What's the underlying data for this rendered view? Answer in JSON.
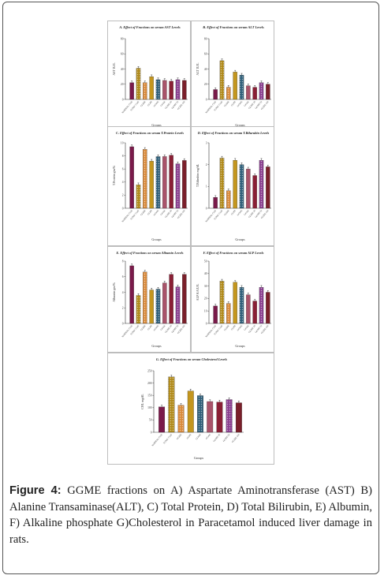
{
  "figure": {
    "caption_label": "Figure 4:",
    "caption_text": " GGME fractions on A) Aspartate Aminotransferase (AST) B) Alanine Transaminase(ALT), C) Total Protein, D) Total Bilirubin, E) Albumin, F) Alkaline phosphate G)Cholesterol in Paracetamol induced liver damage in rats."
  },
  "colors": {
    "normal": "#7a1a4a",
    "toxic": "#b08a1a",
    "orange": "#d98a3a",
    "gold": "#c4961e",
    "teal": "#2f5f7a",
    "mauve": "#a9536a",
    "crimson": "#8a1f35",
    "purple": "#8a3f8f",
    "maroon": "#7a1f2a"
  },
  "chart_data": [
    {
      "id": "A",
      "type": "bar",
      "title": "A. Effect of Fractions on serum AST Levels",
      "xlabel": "Groups",
      "ylabel": "AST IU/L",
      "ylim": [
        0,
        80
      ],
      "yticks": [
        "0",
        "20",
        "40",
        "60",
        "80"
      ],
      "categories": [
        "NORMAL CON",
        "TOXIC CON",
        "GGME",
        "GGPE",
        "GGWE",
        "GGAE",
        "GGME 25",
        "GGME 50",
        "GGME 100"
      ],
      "values": [
        22,
        41,
        22,
        30,
        26,
        25,
        24,
        26,
        25
      ]
    },
    {
      "id": "B",
      "type": "bar",
      "title": "B. Effect of Fractions on serum ALT Levels",
      "xlabel": "Groups",
      "ylabel": "ALT IU/L",
      "ylim": [
        0,
        80
      ],
      "yticks": [
        "0",
        "20",
        "40",
        "60",
        "80"
      ],
      "categories": [
        "NORMAL CON",
        "TOXIC CON",
        "GGME",
        "GGPE",
        "GGWE",
        "GGAE",
        "GGME 25",
        "GGME 50",
        "GGME 100"
      ],
      "values": [
        13,
        51,
        16,
        36,
        32,
        18,
        16,
        22,
        20
      ]
    },
    {
      "id": "C",
      "type": "bar",
      "title": "C. Effect of Fractions on serum T.Protein Levels",
      "xlabel": "Groups",
      "ylabel": "T.Protein gm/%",
      "ylim": [
        0,
        10
      ],
      "yticks": [
        "0",
        "2",
        "4",
        "6",
        "8",
        "10"
      ],
      "categories": [
        "NORMAL CON",
        "TOXIC CON",
        "GGME",
        "GGPE",
        "GGWE",
        "GGAE",
        "GGME 25",
        "GGME 50",
        "GGME 100"
      ],
      "values": [
        9.4,
        3.6,
        9.0,
        7.2,
        7.9,
        7.9,
        8.1,
        6.8,
        7.3
      ]
    },
    {
      "id": "D",
      "type": "bar",
      "title": "D. Effect of Fractions on serum T.Bilurubin Levels",
      "xlabel": "Groups",
      "ylabel": "T.Bilirubin mg/dL",
      "ylim": [
        0,
        3
      ],
      "yticks": [
        "0",
        "1",
        "2",
        "3"
      ],
      "categories": [
        "NORMAL CON",
        "TOXIC CON",
        "GGME",
        "GGPE",
        "GGWE",
        "GGAE",
        "GGME 25",
        "GGME 50",
        "GGME 100"
      ],
      "values": [
        0.5,
        2.3,
        0.8,
        2.2,
        2.0,
        1.8,
        1.5,
        2.2,
        1.9
      ]
    },
    {
      "id": "E",
      "type": "bar",
      "title": "E. Effect of Fractions on serum Albumin Levels",
      "xlabel": "Groups",
      "ylabel": "Albumin gm/%",
      "ylim": [
        0,
        8
      ],
      "yticks": [
        "0",
        "2",
        "4",
        "6",
        "8"
      ],
      "categories": [
        "NORMAL CON",
        "TOXIC CON",
        "GGME",
        "GGPE",
        "GGWE",
        "GGAE",
        "GGME 25",
        "GGME 50",
        "GGME 100"
      ],
      "values": [
        7.4,
        3.6,
        6.6,
        4.3,
        4.4,
        5.2,
        6.3,
        4.7,
        6.3
      ]
    },
    {
      "id": "F",
      "type": "bar",
      "title": "F. Effect of Fractions on serum ALP Levels",
      "xlabel": "Groups",
      "ylabel": "ALP KA/U/L",
      "ylim": [
        0,
        50
      ],
      "yticks": [
        "0",
        "10",
        "20",
        "30",
        "40",
        "50"
      ],
      "categories": [
        "NORMAL CON",
        "TOXIC CON",
        "GGME",
        "GGPE",
        "GGWE",
        "GGAE",
        "GGME 25",
        "GGME 50",
        "GGME 100"
      ],
      "values": [
        14,
        34,
        16,
        33,
        29,
        23,
        18,
        29,
        25
      ]
    },
    {
      "id": "G",
      "type": "bar",
      "title": "G. Effect of Fractions on serum Cholesterol Levels",
      "xlabel": "Groups",
      "ylabel": "CHL mg/dL",
      "ylim": [
        0,
        250
      ],
      "yticks": [
        "0",
        "50",
        "100",
        "150",
        "200",
        "250"
      ],
      "categories": [
        "NORMAL CON",
        "TOXIC CON",
        "GGME",
        "GGPE",
        "GGWE",
        "GGAE",
        "GGME 25",
        "GGME 50",
        "GGME 100"
      ],
      "values": [
        103,
        225,
        110,
        168,
        149,
        125,
        123,
        133,
        120
      ]
    }
  ]
}
